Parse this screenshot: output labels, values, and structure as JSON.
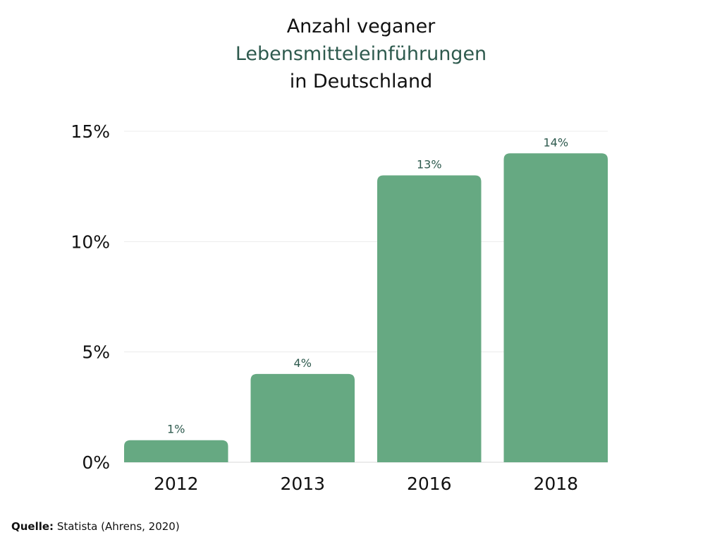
{
  "chart_data": {
    "type": "bar",
    "title_lines": [
      "Anzahl veganer",
      "Lebensmitteleinführungen",
      "in Deutschland"
    ],
    "categories": [
      "2012",
      "2013",
      "2016",
      "2018"
    ],
    "values": [
      1,
      4,
      13,
      14
    ],
    "value_labels": [
      "1%",
      "4%",
      "13%",
      "14%"
    ],
    "xlabel": "",
    "ylabel": "",
    "ylim": [
      0,
      15
    ],
    "yticks": [
      0,
      5,
      10,
      15
    ],
    "ytick_labels": [
      "0%",
      "5%",
      "10%",
      "15%"
    ],
    "grid": true,
    "bar_color": "#66a982",
    "label_color": "#2e5a4e"
  },
  "source": {
    "label": "Quelle:",
    "text": " Statista (Ahrens, 2020)"
  }
}
